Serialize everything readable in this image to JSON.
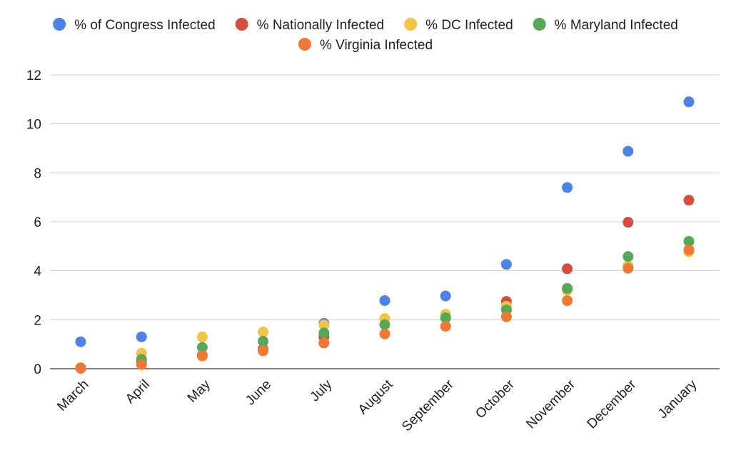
{
  "chart_data": {
    "type": "scatter",
    "categories": [
      "March",
      "April",
      "May",
      "June",
      "July",
      "August",
      "September",
      "October",
      "November",
      "December",
      "January"
    ],
    "series": [
      {
        "name": "% of Congress Infected",
        "color": "#4d83e8",
        "values": [
          1.1,
          1.3,
          null,
          null,
          1.85,
          2.78,
          2.97,
          4.26,
          7.4,
          8.88,
          10.9
        ]
      },
      {
        "name": "% Nationally Infected",
        "color": "#d84c3e",
        "values": [
          0.02,
          0.3,
          0.55,
          0.8,
          1.3,
          null,
          null,
          2.75,
          4.08,
          5.98,
          6.88
        ]
      },
      {
        "name": "% DC Infected",
        "color": "#f3c443",
        "values": [
          0.04,
          0.63,
          1.3,
          1.5,
          1.78,
          2.05,
          2.22,
          2.55,
          3.2,
          4.2,
          4.78
        ]
      },
      {
        "name": "% Maryland Infected",
        "color": "#55a859",
        "values": [
          0.03,
          0.38,
          0.87,
          1.12,
          1.46,
          1.8,
          2.08,
          2.4,
          3.28,
          4.58,
          5.2
        ]
      },
      {
        "name": "% Virginia Infected",
        "color": "#ef7933",
        "values": [
          0.02,
          0.17,
          0.52,
          0.73,
          1.05,
          1.42,
          1.73,
          2.12,
          2.78,
          4.1,
          4.85
        ]
      }
    ],
    "title": "",
    "xlabel": "",
    "ylabel": "",
    "ylim": [
      0,
      12
    ],
    "yticks": [
      0,
      2,
      4,
      6,
      8,
      10,
      12
    ],
    "grid": true,
    "legend_position": "top-center"
  }
}
